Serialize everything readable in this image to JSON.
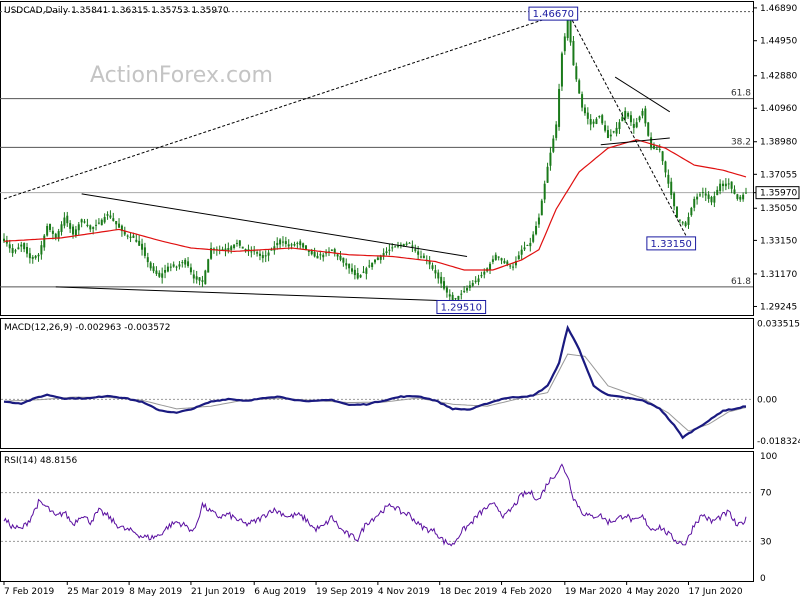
{
  "chart_data": [
    {
      "panel": "price",
      "type": "candlestick",
      "header": "USDCAD,Daily  1.35841 1.36315 1.35753 1.35970",
      "watermark": "ActionForex.com",
      "y_axis_ticks": [
        "1.46890",
        "1.44950",
        "1.42880",
        "1.40960",
        "1.38980",
        "1.37055",
        "1.35970",
        "1.35050",
        "1.33150",
        "1.31170",
        "1.29245"
      ],
      "ylim": [
        1.288,
        1.4712
      ],
      "current_price": "1.35970",
      "x_axis_ticks": [
        "7 Feb 2019",
        "25 Mar 2019",
        "8 May 2019",
        "21 Jun 2019",
        "6 Aug 2019",
        "19 Sep 2019",
        "4 Nov 2019",
        "18 Dec 2019",
        "4 Feb 2020",
        "19 Mar 2020",
        "4 May 2020",
        "17 Jun 2020"
      ],
      "annotations": {
        "high": "1.46670",
        "low_2019": "1.29510",
        "low_2020": "1.33150",
        "fib_top": "61.8",
        "fib_mid": "38.2",
        "fib_bottom": "61.8"
      },
      "fib_levels": [
        1.4153,
        1.3865,
        1.304
      ],
      "price_anchors": [
        [
          0,
          1.3325
        ],
        [
          6,
          1.324
        ],
        [
          12,
          1.329
        ],
        [
          18,
          1.321
        ],
        [
          24,
          1.323
        ],
        [
          30,
          1.34
        ],
        [
          36,
          1.333
        ],
        [
          42,
          1.345
        ],
        [
          48,
          1.335
        ],
        [
          54,
          1.344
        ],
        [
          60,
          1.338
        ],
        [
          66,
          1.342
        ],
        [
          72,
          1.347
        ],
        [
          78,
          1.341
        ],
        [
          84,
          1.335
        ],
        [
          90,
          1.333
        ],
        [
          96,
          1.326
        ],
        [
          102,
          1.315
        ],
        [
          108,
          1.31
        ],
        [
          114,
          1.316
        ],
        [
          120,
          1.316
        ],
        [
          126,
          1.32
        ],
        [
          132,
          1.309
        ],
        [
          138,
          1.307
        ],
        [
          144,
          1.327
        ],
        [
          150,
          1.326
        ],
        [
          156,
          1.327
        ],
        [
          162,
          1.33
        ],
        [
          168,
          1.325
        ],
        [
          174,
          1.325
        ],
        [
          180,
          1.321
        ],
        [
          186,
          1.326
        ],
        [
          192,
          1.332
        ],
        [
          198,
          1.328
        ],
        [
          204,
          1.33
        ],
        [
          210,
          1.326
        ],
        [
          216,
          1.322
        ],
        [
          222,
          1.323
        ],
        [
          228,
          1.326
        ],
        [
          234,
          1.32
        ],
        [
          240,
          1.315
        ],
        [
          246,
          1.309
        ],
        [
          252,
          1.315
        ],
        [
          258,
          1.32
        ],
        [
          264,
          1.324
        ],
        [
          270,
          1.327
        ],
        [
          276,
          1.329
        ],
        [
          282,
          1.33
        ],
        [
          288,
          1.323
        ],
        [
          294,
          1.32
        ],
        [
          300,
          1.312
        ],
        [
          306,
          1.303
        ],
        [
          312,
          1.296
        ],
        [
          318,
          1.3
        ],
        [
          324,
          1.305
        ],
        [
          330,
          1.309
        ],
        [
          336,
          1.315
        ],
        [
          342,
          1.323
        ],
        [
          348,
          1.318
        ],
        [
          354,
          1.316
        ],
        [
          360,
          1.326
        ],
        [
          366,
          1.33
        ],
        [
          372,
          1.345
        ],
        [
          378,
          1.375
        ],
        [
          384,
          1.4
        ],
        [
          388,
          1.442
        ],
        [
          392,
          1.462
        ],
        [
          396,
          1.435
        ],
        [
          402,
          1.41
        ],
        [
          408,
          1.4
        ],
        [
          414,
          1.405
        ],
        [
          420,
          1.392
        ],
        [
          426,
          1.398
        ],
        [
          432,
          1.408
        ],
        [
          438,
          1.398
        ],
        [
          444,
          1.408
        ],
        [
          450,
          1.386
        ],
        [
          456,
          1.385
        ],
        [
          462,
          1.365
        ],
        [
          468,
          1.345
        ],
        [
          474,
          1.34
        ],
        [
          480,
          1.356
        ],
        [
          486,
          1.36
        ],
        [
          492,
          1.354
        ],
        [
          498,
          1.365
        ],
        [
          504,
          1.365
        ],
        [
          510,
          1.356
        ],
        [
          516,
          1.3597
        ]
      ],
      "ma_anchors": [
        [
          0,
          1.331
        ],
        [
          40,
          1.333
        ],
        [
          80,
          1.338
        ],
        [
          110,
          1.331
        ],
        [
          130,
          1.327
        ],
        [
          160,
          1.325
        ],
        [
          200,
          1.327
        ],
        [
          240,
          1.323
        ],
        [
          270,
          1.322
        ],
        [
          300,
          1.319
        ],
        [
          320,
          1.314
        ],
        [
          340,
          1.314
        ],
        [
          360,
          1.32
        ],
        [
          372,
          1.326
        ],
        [
          384,
          1.35
        ],
        [
          400,
          1.372
        ],
        [
          420,
          1.386
        ],
        [
          440,
          1.391
        ],
        [
          460,
          1.386
        ],
        [
          480,
          1.376
        ],
        [
          500,
          1.373
        ],
        [
          516,
          1.369
        ]
      ],
      "trend_lines": [
        {
          "name": "rising-dotted",
          "from": [
            0,
            1.356
          ],
          "to": [
            392,
            1.4667
          ]
        },
        {
          "name": "falling-solid",
          "from": [
            54,
            1.359
          ],
          "to": [
            322,
            1.322
          ]
        },
        {
          "name": "bottom-solid",
          "from": [
            36,
            1.304
          ],
          "to": [
            335,
            1.295
          ]
        },
        {
          "name": "falling-dotted",
          "from": [
            392,
            1.4667
          ],
          "to": [
            476,
            1.3315
          ]
        },
        {
          "name": "channel-top",
          "from": [
            425,
            1.428
          ],
          "to": [
            463,
            1.4075
          ]
        },
        {
          "name": "channel-bottom",
          "from": [
            415,
            1.388
          ],
          "to": [
            463,
            1.392
          ]
        }
      ]
    },
    {
      "panel": "macd",
      "type": "line",
      "header": "MACD(12,26,9) -0.002963 -0.003572",
      "y_axis_ticks": [
        "0.033515",
        "0.00",
        "-0.018324"
      ],
      "ylim": [
        -0.0215,
        0.0342
      ],
      "main_anchors": [
        [
          0,
          -0.001
        ],
        [
          12,
          -0.0018
        ],
        [
          24,
          0.001
        ],
        [
          30,
          0.002
        ],
        [
          42,
          0.0004
        ],
        [
          60,
          0.0005
        ],
        [
          72,
          0.0016
        ],
        [
          84,
          0.0006
        ],
        [
          96,
          -0.0012
        ],
        [
          108,
          -0.0048
        ],
        [
          120,
          -0.006
        ],
        [
          132,
          -0.004
        ],
        [
          144,
          -0.001
        ],
        [
          156,
          0.0002
        ],
        [
          168,
          -0.0006
        ],
        [
          180,
          0.0004
        ],
        [
          192,
          0.0012
        ],
        [
          204,
          -0.0004
        ],
        [
          216,
          -0.0008
        ],
        [
          228,
          -0.0002
        ],
        [
          240,
          -0.0025
        ],
        [
          252,
          -0.0022
        ],
        [
          264,
          -0.0005
        ],
        [
          276,
          0.0012
        ],
        [
          288,
          0.0014
        ],
        [
          300,
          -0.0005
        ],
        [
          312,
          -0.0042
        ],
        [
          324,
          -0.0045
        ],
        [
          336,
          -0.0018
        ],
        [
          348,
          0.0005
        ],
        [
          360,
          0.0012
        ],
        [
          368,
          0.0016
        ],
        [
          378,
          0.006
        ],
        [
          386,
          0.016
        ],
        [
          392,
          0.0318
        ],
        [
          400,
          0.022
        ],
        [
          410,
          0.006
        ],
        [
          420,
          0.0018
        ],
        [
          432,
          0.0008
        ],
        [
          444,
          -0.0005
        ],
        [
          456,
          -0.004
        ],
        [
          466,
          -0.0115
        ],
        [
          472,
          -0.0168
        ],
        [
          480,
          -0.0135
        ],
        [
          490,
          -0.0095
        ],
        [
          500,
          -0.005
        ],
        [
          510,
          -0.004
        ],
        [
          516,
          -0.003
        ]
      ],
      "signal_anchors": [
        [
          0,
          -0.0008
        ],
        [
          24,
          -0.0002
        ],
        [
          48,
          0.001
        ],
        [
          72,
          0.0009
        ],
        [
          96,
          -0.0004
        ],
        [
          120,
          -0.0042
        ],
        [
          144,
          -0.003
        ],
        [
          168,
          -0.0002
        ],
        [
          192,
          0.0004
        ],
        [
          216,
          -0.0005
        ],
        [
          240,
          -0.0014
        ],
        [
          264,
          -0.0012
        ],
        [
          288,
          0.0006
        ],
        [
          312,
          -0.0022
        ],
        [
          336,
          -0.003
        ],
        [
          360,
          0.0006
        ],
        [
          378,
          0.003
        ],
        [
          392,
          0.02
        ],
        [
          404,
          0.019
        ],
        [
          420,
          0.006
        ],
        [
          444,
          0.0005
        ],
        [
          462,
          -0.006
        ],
        [
          476,
          -0.014
        ],
        [
          490,
          -0.011
        ],
        [
          504,
          -0.0055
        ],
        [
          516,
          -0.0036
        ]
      ]
    },
    {
      "panel": "rsi",
      "type": "line",
      "header": "RSI(14) 48.8156",
      "y_axis_ticks": [
        "100",
        "70",
        "30",
        "0"
      ],
      "ylim": [
        0,
        100
      ],
      "anchors": [
        [
          0,
          48
        ],
        [
          6,
          42
        ],
        [
          12,
          40
        ],
        [
          18,
          48
        ],
        [
          24,
          62
        ],
        [
          30,
          58
        ],
        [
          36,
          50
        ],
        [
          42,
          54
        ],
        [
          48,
          44
        ],
        [
          54,
          52
        ],
        [
          60,
          46
        ],
        [
          66,
          55
        ],
        [
          72,
          51
        ],
        [
          78,
          44
        ],
        [
          84,
          40
        ],
        [
          90,
          38
        ],
        [
          96,
          34
        ],
        [
          102,
          33
        ],
        [
          108,
          35
        ],
        [
          114,
          42
        ],
        [
          120,
          46
        ],
        [
          126,
          43
        ],
        [
          132,
          38
        ],
        [
          138,
          60
        ],
        [
          144,
          54
        ],
        [
          150,
          50
        ],
        [
          156,
          52
        ],
        [
          162,
          48
        ],
        [
          168,
          44
        ],
        [
          174,
          46
        ],
        [
          180,
          50
        ],
        [
          186,
          56
        ],
        [
          192,
          54
        ],
        [
          198,
          50
        ],
        [
          204,
          52
        ],
        [
          210,
          48
        ],
        [
          216,
          40
        ],
        [
          222,
          42
        ],
        [
          228,
          50
        ],
        [
          234,
          40
        ],
        [
          240,
          35
        ],
        [
          246,
          32
        ],
        [
          252,
          45
        ],
        [
          258,
          50
        ],
        [
          264,
          56
        ],
        [
          270,
          60
        ],
        [
          276,
          54
        ],
        [
          282,
          52
        ],
        [
          288,
          44
        ],
        [
          294,
          40
        ],
        [
          300,
          38
        ],
        [
          306,
          30
        ],
        [
          312,
          27
        ],
        [
          318,
          38
        ],
        [
          324,
          44
        ],
        [
          330,
          52
        ],
        [
          336,
          58
        ],
        [
          342,
          60
        ],
        [
          348,
          50
        ],
        [
          354,
          58
        ],
        [
          360,
          68
        ],
        [
          366,
          70
        ],
        [
          372,
          64
        ],
        [
          378,
          78
        ],
        [
          384,
          86
        ],
        [
          388,
          92
        ],
        [
          392,
          84
        ],
        [
          396,
          66
        ],
        [
          402,
          54
        ],
        [
          408,
          50
        ],
        [
          414,
          52
        ],
        [
          420,
          46
        ],
        [
          426,
          48
        ],
        [
          432,
          52
        ],
        [
          438,
          46
        ],
        [
          444,
          50
        ],
        [
          450,
          40
        ],
        [
          456,
          42
        ],
        [
          462,
          36
        ],
        [
          468,
          30
        ],
        [
          474,
          28
        ],
        [
          480,
          44
        ],
        [
          486,
          52
        ],
        [
          492,
          46
        ],
        [
          498,
          50
        ],
        [
          504,
          54
        ],
        [
          510,
          42
        ],
        [
          516,
          48
        ]
      ]
    }
  ]
}
